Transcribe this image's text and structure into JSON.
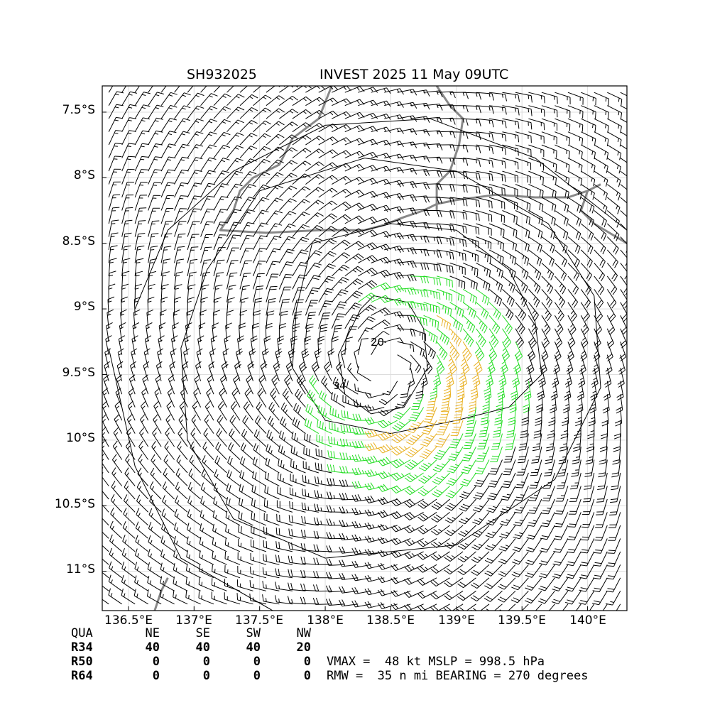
{
  "title": {
    "storm_id": "SH932025",
    "storm_info": "INVEST 2025 11 May 09UTC"
  },
  "map": {
    "lat_ticks": [
      "7.5°S",
      "8°S",
      "8.5°S",
      "9°S",
      "9.5°S",
      "10°S",
      "10.5°S",
      "11°S"
    ],
    "lon_ticks": [
      "136.5°E",
      "137°E",
      "137.5°E",
      "138°E",
      "138.5°E",
      "139°E",
      "139.5°E",
      "140°E"
    ],
    "lat_range": [
      -11.3,
      -7.3
    ],
    "lon_range": [
      136.3,
      140.3
    ],
    "contour_label": "20",
    "contour_label_2": "34",
    "colors": {
      "barb_low": "#000000",
      "barb_34kt": "#22dd22",
      "barb_50kt": "#e8b020",
      "coastline": "#888888",
      "grid": "#dddddd"
    },
    "center": {
      "lon": 138.45,
      "lat": -9.45
    }
  },
  "wind_radii": {
    "header": [
      "QUA",
      "NE",
      "SE",
      "SW",
      "NW"
    ],
    "rows": [
      {
        "label": "R34",
        "values": [
          "40",
          "40",
          "40",
          "20"
        ]
      },
      {
        "label": "R50",
        "values": [
          "0",
          "0",
          "0",
          "0"
        ]
      },
      {
        "label": "R64",
        "values": [
          "0",
          "0",
          "0",
          "0"
        ]
      }
    ]
  },
  "stats": {
    "line1": "VMAX =  48 kt MSLP = 998.5 hPa",
    "line2": "RMW =  35 n mi BEARING = 270 degrees"
  }
}
